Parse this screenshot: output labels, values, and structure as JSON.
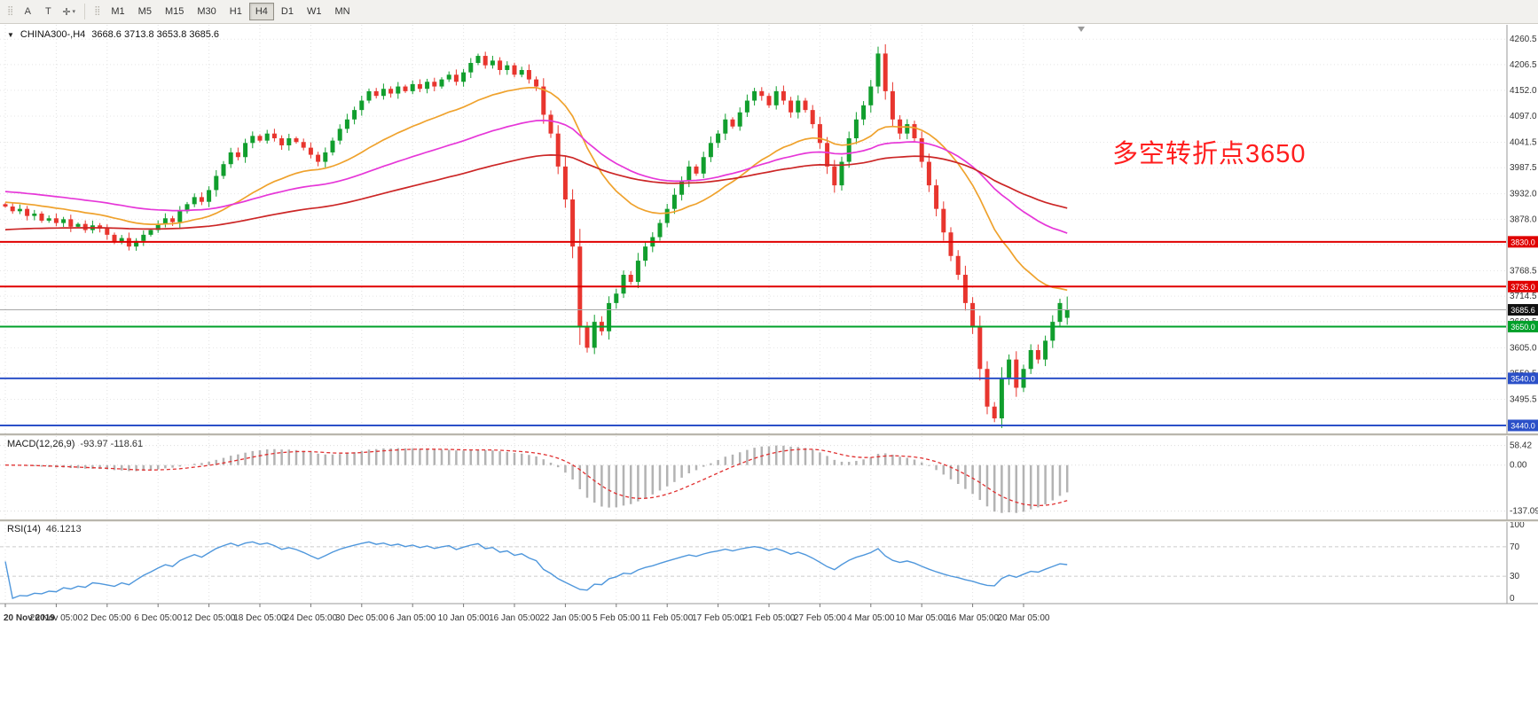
{
  "toolbar": {
    "tools": [
      {
        "id": "annotations",
        "label": "A"
      },
      {
        "id": "text",
        "label": "T"
      },
      {
        "id": "crosshair",
        "label": "✛"
      }
    ],
    "timeframes": [
      {
        "label": "M1"
      },
      {
        "label": "M5"
      },
      {
        "label": "M15"
      },
      {
        "label": "M30"
      },
      {
        "label": "H1"
      },
      {
        "label": "H4"
      },
      {
        "label": "D1"
      },
      {
        "label": "W1"
      },
      {
        "label": "MN"
      }
    ],
    "active_timeframe": "H4"
  },
  "chart_header": {
    "title": "CHINA300-,H4",
    "ohlc": "3668.6 3713.8 3653.8 3685.6"
  },
  "chart_data": {
    "type": "candlestick",
    "symbol": "CHINA300-",
    "timeframe": "H4",
    "up_color": "#119e2d",
    "down_color": "#e8352e",
    "y_range": [
      3423,
      4291
    ],
    "y_axis_labels": [
      "4260.5",
      "4206.5",
      "4152.0",
      "4097.0",
      "4041.5",
      "3987.5",
      "3932.0",
      "3878.0",
      "3824.0",
      "3768.5",
      "3714.5",
      "3660.5",
      "3605.0",
      "3550.5",
      "3495.5",
      "3440.0"
    ],
    "x_labels": [
      "20 Nov 2019",
      "26 Nov 05:00",
      "2 Dec 05:00",
      "6 Dec 05:00",
      "12 Dec 05:00",
      "18 Dec 05:00",
      "24 Dec 05:00",
      "30 Dec 05:00",
      "6 Jan 05:00",
      "10 Jan 05:00",
      "16 Jan 05:00",
      "22 Jan 05:00",
      "5 Feb 05:00",
      "11 Feb 05:00",
      "17 Feb 05:00",
      "21 Feb 05:00",
      "27 Feb 05:00",
      "4 Mar 05:00",
      "10 Mar 05:00",
      "16 Mar 05:00",
      "20 Mar 05:00"
    ],
    "label_every": 7,
    "closes": [
      3905,
      3895,
      3900,
      3885,
      3890,
      3875,
      3880,
      3870,
      3878,
      3862,
      3868,
      3855,
      3865,
      3858,
      3845,
      3830,
      3838,
      3820,
      3832,
      3845,
      3855,
      3868,
      3880,
      3872,
      3895,
      3910,
      3925,
      3915,
      3940,
      3970,
      3995,
      4020,
      4010,
      4040,
      4055,
      4045,
      4060,
      4050,
      4035,
      4050,
      4042,
      4030,
      4015,
      4000,
      4020,
      4045,
      4070,
      4090,
      4110,
      4130,
      4150,
      4140,
      4155,
      4145,
      4160,
      4150,
      4165,
      4155,
      4170,
      4160,
      4175,
      4185,
      4170,
      4190,
      4210,
      4225,
      4205,
      4215,
      4195,
      4205,
      4185,
      4195,
      4175,
      4160,
      4100,
      4060,
      3990,
      3920,
      3820,
      3650,
      3605,
      3660,
      3640,
      3700,
      3720,
      3760,
      3745,
      3790,
      3820,
      3840,
      3870,
      3900,
      3930,
      3960,
      3990,
      3975,
      4010,
      4040,
      4060,
      4090,
      4075,
      4105,
      4130,
      4150,
      4140,
      4120,
      4150,
      4130,
      4105,
      4130,
      4110,
      4080,
      4040,
      3990,
      3950,
      4000,
      4050,
      4090,
      4120,
      4160,
      4230,
      4150,
      4090,
      4060,
      4080,
      4050,
      4000,
      3950,
      3900,
      3850,
      3800,
      3760,
      3700,
      3650,
      3560,
      3480,
      3455,
      3540,
      3580,
      3520,
      3560,
      3600,
      3580,
      3620,
      3660,
      3700,
      3685.6
    ],
    "last_candle_ohlc": [
      3668.6,
      3713.8,
      3653.8,
      3685.6
    ],
    "moving_averages": [
      {
        "name": "ma-fast",
        "color": "#efa22d",
        "period": 26,
        "seed": 3915
      },
      {
        "name": "ma-medium",
        "color": "#e637d8",
        "period": 60,
        "seed": 3938
      },
      {
        "name": "ma-slow",
        "color": "#cc2626",
        "period": 110,
        "seed": 3855
      }
    ],
    "hlines": [
      {
        "value": 3830.0,
        "label": "3830.0",
        "color": "#e00000"
      },
      {
        "value": 3735.0,
        "label": "3735.0",
        "color": "#e00000"
      },
      {
        "value": 3650.0,
        "label": "3650.0",
        "color": "#00a02a"
      },
      {
        "value": 3540.0,
        "label": "3540.0",
        "color": "#2b50c8"
      },
      {
        "value": 3440.0,
        "label": "3440.0",
        "color": "#2b50c8"
      }
    ],
    "bid_line": {
      "value": 3685.6,
      "label": "3685.6",
      "line_color": "#a8a8a8",
      "badge_bg": "#111111"
    },
    "annotation": {
      "text": "多空转折点3650",
      "color": "#ff1e1e"
    },
    "macd": {
      "label": "MACD(12,26,9)",
      "values_text": "-93.97 -118.61",
      "fast": 12,
      "slow": 26,
      "signal": 9,
      "axis_labels": [
        "58.42",
        "0.00",
        "-137.09"
      ],
      "hist_color": "#b3b3b3",
      "signal_color": "#e03030"
    },
    "rsi": {
      "label": "RSI(14)",
      "value_text": "46.1213",
      "period": 14,
      "axis_labels": [
        "100",
        "70",
        "30",
        "0"
      ],
      "levels": [
        70,
        30
      ],
      "color": "#4f97dc"
    }
  }
}
